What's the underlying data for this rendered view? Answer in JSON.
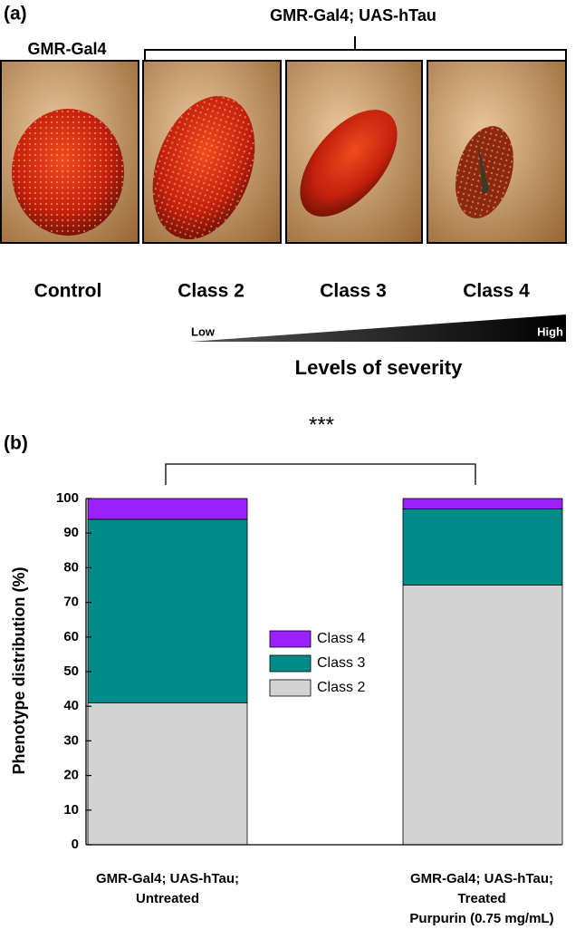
{
  "panel_a": {
    "label": "(a)",
    "group_label": "GMR-Gal4; UAS-hTau",
    "control_genotype": "GMR-Gal4",
    "images": [
      "Control",
      "Class 2",
      "Class 3",
      "Class 4"
    ],
    "scale_low": "Low",
    "scale_high": "High",
    "scale_title": "Levels of severity"
  },
  "chart_data": {
    "type": "stacked_bar",
    "panel_label": "(b)",
    "annotation": "***",
    "y_label": "Phenotype distribution (%)",
    "categories": [
      [
        "GMR-Gal4; UAS-hTau;",
        "Untreated"
      ],
      [
        "GMR-Gal4; UAS-hTau;",
        "Treated",
        "Purpurin (0.75 mg/mL)"
      ]
    ],
    "series": [
      {
        "name": "Class 2",
        "color": "#d3d3d3",
        "values": [
          41,
          75
        ]
      },
      {
        "name": "Class 3",
        "color": "#008b8b",
        "values": [
          53,
          22
        ]
      },
      {
        "name": "Class 4",
        "color": "#9b1fff",
        "values": [
          6,
          3
        ]
      }
    ],
    "ylim": [
      0,
      100
    ],
    "yticks": [
      0,
      10,
      20,
      30,
      40,
      50,
      60,
      70,
      80,
      90,
      100
    ]
  }
}
